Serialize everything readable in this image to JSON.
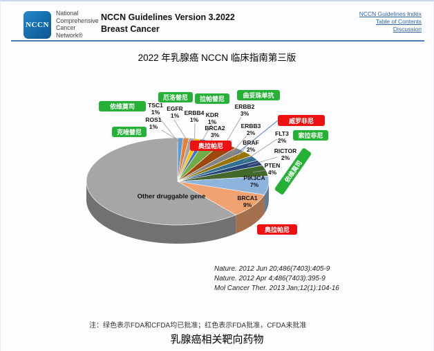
{
  "header": {
    "logo_text": "NCCN",
    "org_lines": [
      "National",
      "Comprehensive",
      "Cancer",
      "Network®"
    ],
    "title_line1": "NCCN Guidelines Version 3.2022",
    "title_line2": "Breast Cancer",
    "links": [
      "NCCN Guidelines Index",
      "Table of Contents",
      "Discussion"
    ]
  },
  "page_title": "2022 年乳腺癌 NCCN 临床指南第三版",
  "chart_data": {
    "type": "pie",
    "style": "3d",
    "title": "乳腺癌相关靶向药物",
    "unit": "percent",
    "start_angle_deg": 0,
    "direction": "clockwise",
    "slices": [
      {
        "gene": "TSC1",
        "pct": 1,
        "color": "#5B9BD5"
      },
      {
        "gene": "ROS1",
        "pct": 1,
        "color": "#ED7D31"
      },
      {
        "gene": "EGFR",
        "pct": 1,
        "color": "#A5A5A5"
      },
      {
        "gene": "ERBB4",
        "pct": 1,
        "color": "#FFC000"
      },
      {
        "gene": "KDR",
        "pct": 1,
        "color": "#4472C4"
      },
      {
        "gene": "BRCA2",
        "pct": 3,
        "color": "#70AD47"
      },
      {
        "gene": "ERBB2",
        "pct": 3,
        "color": "#9E480E"
      },
      {
        "gene": "ERBB3",
        "pct": 2,
        "color": "#848484"
      },
      {
        "gene": "BRAF",
        "pct": 2,
        "color": "#997300"
      },
      {
        "gene": "FLT3",
        "pct": 2,
        "color": "#31708F"
      },
      {
        "gene": "RICTOR",
        "pct": 2,
        "color": "#264478"
      },
      {
        "gene": "PTEN",
        "pct": 4,
        "color": "#43682B"
      },
      {
        "gene": "PIK3CA",
        "pct": 7,
        "color": "#8EB4DE"
      },
      {
        "gene": "BRCA1",
        "pct": 9,
        "color": "#F0A370"
      },
      {
        "gene": "Other druggable gene",
        "pct": 61,
        "color": "#A6A6A6",
        "label_inside": true
      }
    ],
    "drug_labels": [
      {
        "text": "依维莫司",
        "status": "approved_fda_cfda",
        "target": "TSC1"
      },
      {
        "text": "厄洛替尼",
        "status": "approved_fda_cfda",
        "target": "EGFR"
      },
      {
        "text": "拉帕替尼",
        "status": "approved_fda_cfda",
        "target": "ERBB4/KDR"
      },
      {
        "text": "曲妥珠单抗",
        "status": "approved_fda_cfda",
        "target": "ERBB2"
      },
      {
        "text": "克唑替尼",
        "status": "approved_fda_cfda",
        "target": "ROS1"
      },
      {
        "text": "奥拉帕尼",
        "status": "fda_only",
        "target": "BRCA2"
      },
      {
        "text": "威罗非尼",
        "status": "fda_only",
        "target": "BRAF"
      },
      {
        "text": "索拉非尼",
        "status": "approved_fda_cfda",
        "target": "FLT3"
      },
      {
        "text": "依维莫司",
        "status": "approved_fda_cfda",
        "target": "RICTOR/PTEN",
        "rotated": true
      },
      {
        "text": "奥拉帕尼",
        "status": "fda_only",
        "target": "BRCA1"
      }
    ],
    "status_colors": {
      "approved_fda_cfda": "#25B135",
      "fda_only": "#EE1111"
    }
  },
  "citations": [
    "Nature. 2012 Jun 20;486(7403):405-9",
    "Nature. 2012 Apr 4;486(7403):395-9",
    "Mol Cancer Ther. 2013 Jan;12(1):104-16"
  ],
  "note": "注：绿色表示FDA和CFDA均已批准；红色表示FDA批准，CFDA未批准",
  "bottom_title": "乳腺癌相关靶向药物"
}
